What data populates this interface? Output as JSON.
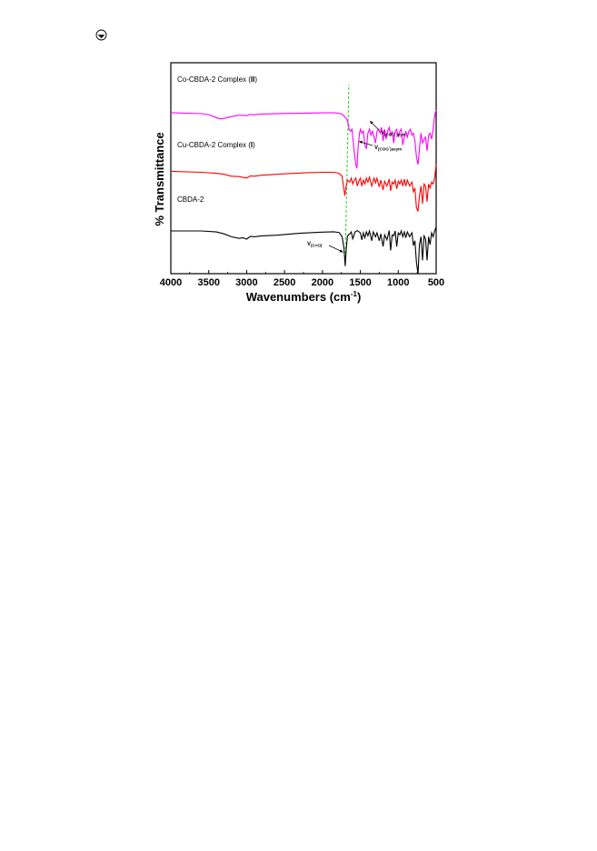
{
  "page": {
    "corner_icon": "circled-arrow-icon"
  },
  "chart_data": {
    "type": "line",
    "title": "",
    "xlabel": "Wavenumbers (cm",
    "xlabel_sup": "-1",
    "xlabel_close": ")",
    "ylabel": "% Transmittance",
    "xlim": [
      4000,
      500
    ],
    "x_reversed": true,
    "xticks": [
      4000,
      3500,
      3000,
      2500,
      2000,
      1500,
      1000,
      500
    ],
    "grid": false,
    "legend": "inline labels above each trace",
    "marker_line": {
      "x": 1700,
      "color": "#33cc33",
      "style": "dashed"
    },
    "series": [
      {
        "name": "CBDA-2",
        "color": "#000000",
        "baseline": 20,
        "points": [
          [
            4000,
            20
          ],
          [
            3600,
            20
          ],
          [
            3400,
            19.5
          ],
          [
            3300,
            18.5
          ],
          [
            3200,
            17
          ],
          [
            3100,
            16.2
          ],
          [
            3050,
            16.5
          ],
          [
            3000,
            15.8
          ],
          [
            2950,
            17.2
          ],
          [
            2900,
            17
          ],
          [
            2800,
            17.5
          ],
          [
            2600,
            17.8
          ],
          [
            2500,
            18.2
          ],
          [
            2300,
            18.8
          ],
          [
            2100,
            19.2
          ],
          [
            2000,
            19.4
          ],
          [
            1850,
            19.6
          ],
          [
            1780,
            19.2
          ],
          [
            1740,
            17
          ],
          [
            1715,
            11
          ],
          [
            1700,
            2
          ],
          [
            1685,
            11
          ],
          [
            1670,
            17.5
          ],
          [
            1640,
            18.5
          ],
          [
            1620,
            19.5
          ],
          [
            1600,
            16
          ],
          [
            1590,
            17
          ],
          [
            1570,
            19.5
          ],
          [
            1540,
            20.2
          ],
          [
            1500,
            19
          ],
          [
            1480,
            15.5
          ],
          [
            1460,
            19
          ],
          [
            1440,
            16.5
          ],
          [
            1420,
            19.5
          ],
          [
            1400,
            17.5
          ],
          [
            1380,
            20
          ],
          [
            1350,
            15
          ],
          [
            1330,
            19.5
          ],
          [
            1300,
            17
          ],
          [
            1280,
            19
          ],
          [
            1250,
            15
          ],
          [
            1230,
            18.5
          ],
          [
            1200,
            12
          ],
          [
            1180,
            18
          ],
          [
            1150,
            15.5
          ],
          [
            1120,
            20.2
          ],
          [
            1100,
            10
          ],
          [
            1080,
            18
          ],
          [
            1060,
            17.5
          ],
          [
            1040,
            20
          ],
          [
            1020,
            12
          ],
          [
            1000,
            19
          ],
          [
            980,
            18
          ],
          [
            960,
            20
          ],
          [
            940,
            17
          ],
          [
            920,
            19.5
          ],
          [
            900,
            16.5
          ],
          [
            880,
            19.5
          ],
          [
            850,
            17
          ],
          [
            820,
            19
          ],
          [
            800,
            12.5
          ],
          [
            780,
            15
          ],
          [
            760,
            4
          ],
          [
            740,
            -2
          ],
          [
            720,
            13
          ],
          [
            700,
            17
          ],
          [
            680,
            5
          ],
          [
            660,
            17.5
          ],
          [
            640,
            16
          ],
          [
            620,
            5
          ],
          [
            600,
            17
          ],
          [
            580,
            13
          ],
          [
            560,
            19
          ],
          [
            540,
            17
          ],
          [
            520,
            20
          ],
          [
            500,
            22
          ]
        ]
      },
      {
        "name": "Cu-CBDA-2 Complex (",
        "name_bold": "I",
        "name_close": ")",
        "color": "#ff0000",
        "baseline": 50,
        "points": [
          [
            4000,
            50.5
          ],
          [
            3600,
            50
          ],
          [
            3400,
            49.5
          ],
          [
            3300,
            49
          ],
          [
            3200,
            48
          ],
          [
            3100,
            47.8
          ],
          [
            3000,
            47
          ],
          [
            2950,
            48.2
          ],
          [
            2900,
            48
          ],
          [
            2800,
            48.5
          ],
          [
            2500,
            49.2
          ],
          [
            2200,
            49.8
          ],
          [
            2000,
            50
          ],
          [
            1850,
            50
          ],
          [
            1780,
            49.5
          ],
          [
            1740,
            48
          ],
          [
            1720,
            42
          ],
          [
            1705,
            38
          ],
          [
            1690,
            42.5
          ],
          [
            1670,
            46
          ],
          [
            1640,
            45
          ],
          [
            1620,
            47
          ],
          [
            1600,
            44
          ],
          [
            1580,
            46
          ],
          [
            1560,
            47
          ],
          [
            1540,
            43
          ],
          [
            1520,
            45.5
          ],
          [
            1500,
            47
          ],
          [
            1480,
            43
          ],
          [
            1460,
            46
          ],
          [
            1440,
            44
          ],
          [
            1420,
            47
          ],
          [
            1400,
            45
          ],
          [
            1380,
            47.5
          ],
          [
            1350,
            43
          ],
          [
            1320,
            47
          ],
          [
            1300,
            44.5
          ],
          [
            1280,
            47
          ],
          [
            1250,
            42.5
          ],
          [
            1230,
            46
          ],
          [
            1200,
            41
          ],
          [
            1180,
            45.5
          ],
          [
            1150,
            43
          ],
          [
            1120,
            46.5
          ],
          [
            1100,
            40.5
          ],
          [
            1080,
            45
          ],
          [
            1060,
            44
          ],
          [
            1040,
            46
          ],
          [
            1020,
            41.5
          ],
          [
            1000,
            45.5
          ],
          [
            980,
            44
          ],
          [
            960,
            46
          ],
          [
            940,
            43
          ],
          [
            920,
            46.5
          ],
          [
            900,
            43
          ],
          [
            880,
            46
          ],
          [
            850,
            43
          ],
          [
            820,
            45
          ],
          [
            800,
            40
          ],
          [
            780,
            42
          ],
          [
            760,
            32
          ],
          [
            740,
            30
          ],
          [
            720,
            38
          ],
          [
            700,
            43
          ],
          [
            680,
            34
          ],
          [
            660,
            44
          ],
          [
            640,
            43
          ],
          [
            620,
            35
          ],
          [
            600,
            44
          ],
          [
            580,
            42
          ],
          [
            560,
            45
          ],
          [
            540,
            44
          ],
          [
            520,
            47
          ],
          [
            500,
            54
          ]
        ]
      },
      {
        "name": "Co-CBDA-2 Complex (",
        "name_bold": "II",
        "name_close": ")",
        "color": "#ff00ff",
        "baseline": 80,
        "points": [
          [
            4000,
            80.5
          ],
          [
            3600,
            80
          ],
          [
            3500,
            79.5
          ],
          [
            3400,
            78
          ],
          [
            3350,
            77.3
          ],
          [
            3300,
            77.6
          ],
          [
            3200,
            78.5
          ],
          [
            3100,
            79.2
          ],
          [
            3000,
            79
          ],
          [
            2950,
            79.6
          ],
          [
            2900,
            79.4
          ],
          [
            2800,
            79.8
          ],
          [
            2500,
            80.1
          ],
          [
            2200,
            80.3
          ],
          [
            2000,
            80.4
          ],
          [
            1850,
            80.4
          ],
          [
            1800,
            80.3
          ],
          [
            1760,
            80
          ],
          [
            1730,
            79.5
          ],
          [
            1700,
            78
          ],
          [
            1680,
            77.5
          ],
          [
            1660,
            75
          ],
          [
            1650,
            72
          ],
          [
            1630,
            71
          ],
          [
            1610,
            72
          ],
          [
            1600,
            68
          ],
          [
            1580,
            60
          ],
          [
            1560,
            54
          ],
          [
            1545,
            52
          ],
          [
            1530,
            63
          ],
          [
            1510,
            70
          ],
          [
            1500,
            72
          ],
          [
            1480,
            70
          ],
          [
            1460,
            71
          ],
          [
            1440,
            64
          ],
          [
            1420,
            62
          ],
          [
            1400,
            70
          ],
          [
            1380,
            72
          ],
          [
            1360,
            69
          ],
          [
            1340,
            71
          ],
          [
            1320,
            68
          ],
          [
            1300,
            65
          ],
          [
            1280,
            71
          ],
          [
            1260,
            72
          ],
          [
            1240,
            70
          ],
          [
            1220,
            73
          ],
          [
            1200,
            66
          ],
          [
            1180,
            72
          ],
          [
            1160,
            67
          ],
          [
            1140,
            71
          ],
          [
            1120,
            73
          ],
          [
            1100,
            69
          ],
          [
            1080,
            71
          ],
          [
            1060,
            65
          ],
          [
            1040,
            71
          ],
          [
            1020,
            72
          ],
          [
            1000,
            68
          ],
          [
            980,
            71
          ],
          [
            960,
            72
          ],
          [
            940,
            64
          ],
          [
            920,
            68
          ],
          [
            900,
            71
          ],
          [
            880,
            68
          ],
          [
            860,
            71
          ],
          [
            840,
            72
          ],
          [
            820,
            69
          ],
          [
            800,
            70
          ],
          [
            780,
            66
          ],
          [
            760,
            58
          ],
          [
            740,
            54
          ],
          [
            720,
            62
          ],
          [
            700,
            70
          ],
          [
            680,
            65
          ],
          [
            660,
            67
          ],
          [
            640,
            68
          ],
          [
            620,
            61
          ],
          [
            600,
            69
          ],
          [
            580,
            70
          ],
          [
            560,
            67
          ],
          [
            540,
            72
          ],
          [
            520,
            79
          ],
          [
            500,
            82
          ]
        ]
      }
    ],
    "annotations": [
      {
        "label": "v(C=O)",
        "main": "V",
        "sub": "(C=O)",
        "sup": "",
        "tail": ""
      },
      {
        "label": "v(COO-)asym",
        "main": "V",
        "sub": "(COO",
        "sup": "-",
        "tail": ")asym"
      },
      {
        "label": "v(COO-)sym",
        "main": "V",
        "sub": "(COO",
        "sup": "-",
        "tail": ")sym"
      }
    ]
  }
}
